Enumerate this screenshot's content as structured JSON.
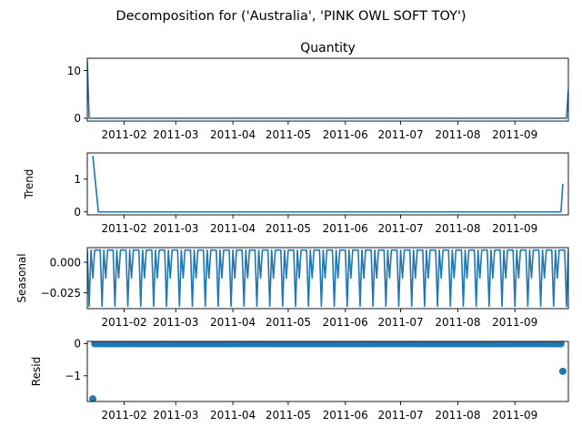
{
  "figure_title": "Decomposition for ('Australia', 'PINK OWL SOFT TOY')",
  "line_color": "#1f77b4",
  "chart_data": [
    {
      "type": "line",
      "title": "Quantity",
      "ylabel": "",
      "xlim": [
        "2011-01-12",
        "2011-09-30"
      ],
      "ylim": [
        -0.6,
        12.6
      ],
      "yticks": [
        0,
        10
      ],
      "ytick_labels": [
        "0",
        "10"
      ],
      "xticks": [
        "2011-02-01",
        "2011-03-01",
        "2011-04-01",
        "2011-05-01",
        "2011-06-01",
        "2011-07-01",
        "2011-08-01",
        "2011-09-01"
      ],
      "xtick_labels": [
        "2011-02",
        "2011-03",
        "2011-04",
        "2011-05",
        "2011-06",
        "2011-07",
        "2011-08",
        "2011-09"
      ],
      "series": [
        {
          "x": [
            "2011-01-12",
            "2011-01-13",
            "2011-09-29",
            "2011-09-30"
          ],
          "y": [
            12,
            0,
            0,
            6
          ]
        }
      ]
    },
    {
      "type": "line",
      "title": "",
      "ylabel": "Trend",
      "xlim": [
        "2011-01-12",
        "2011-09-30"
      ],
      "ylim": [
        -0.09,
        1.8
      ],
      "yticks": [
        0,
        1
      ],
      "ytick_labels": [
        "0",
        "1"
      ],
      "xticks": [
        "2011-02-01",
        "2011-03-01",
        "2011-04-01",
        "2011-05-01",
        "2011-06-01",
        "2011-07-01",
        "2011-08-01",
        "2011-09-01"
      ],
      "xtick_labels": [
        "2011-02",
        "2011-03",
        "2011-04",
        "2011-05",
        "2011-06",
        "2011-07",
        "2011-08",
        "2011-09"
      ],
      "series": [
        {
          "x": [
            "2011-01-15",
            "2011-01-18",
            "2011-09-26",
            "2011-09-27"
          ],
          "y": [
            1.71,
            0,
            0,
            0.86
          ]
        }
      ]
    },
    {
      "type": "line",
      "title": "",
      "ylabel": "Seasonal",
      "xlim": [
        "2011-01-12",
        "2011-09-30"
      ],
      "ylim": [
        -0.038,
        0.012
      ],
      "yticks": [
        0,
        -0.025
      ],
      "ytick_labels": [
        "0.000",
        "−0.025"
      ],
      "xticks": [
        "2011-02-01",
        "2011-03-01",
        "2011-04-01",
        "2011-05-01",
        "2011-06-01",
        "2011-07-01",
        "2011-08-01",
        "2011-09-01"
      ],
      "xtick_labels": [
        "2011-02",
        "2011-03",
        "2011-04",
        "2011-05",
        "2011-06",
        "2011-07",
        "2011-08",
        "2011-09"
      ],
      "series": [
        {
          "start": "2011-01-12",
          "end": "2011-09-30",
          "period_days": 7,
          "pattern": [
            0.01,
            -0.036,
            0.01,
            -0.013,
            0.01,
            0.01,
            0.01
          ]
        }
      ]
    },
    {
      "type": "scatter",
      "title": "",
      "ylabel": "Resid",
      "xlim": [
        "2011-01-12",
        "2011-09-30"
      ],
      "ylim": [
        -1.8,
        0.07
      ],
      "yticks": [
        0,
        -1
      ],
      "ytick_labels": [
        "0",
        "−1"
      ],
      "xticks": [
        "2011-02-01",
        "2011-03-01",
        "2011-04-01",
        "2011-05-01",
        "2011-06-01",
        "2011-07-01",
        "2011-08-01",
        "2011-09-01"
      ],
      "xtick_labels": [
        "2011-02",
        "2011-03",
        "2011-04",
        "2011-05",
        "2011-06",
        "2011-07",
        "2011-08",
        "2011-09"
      ],
      "series": [
        {
          "start": "2011-01-15",
          "end": "2011-09-27",
          "default_y": 0,
          "overrides": [
            {
              "x": "2011-01-15",
              "y": -1.72
            },
            {
              "x": "2011-09-27",
              "y": -0.86
            }
          ]
        }
      ]
    }
  ]
}
